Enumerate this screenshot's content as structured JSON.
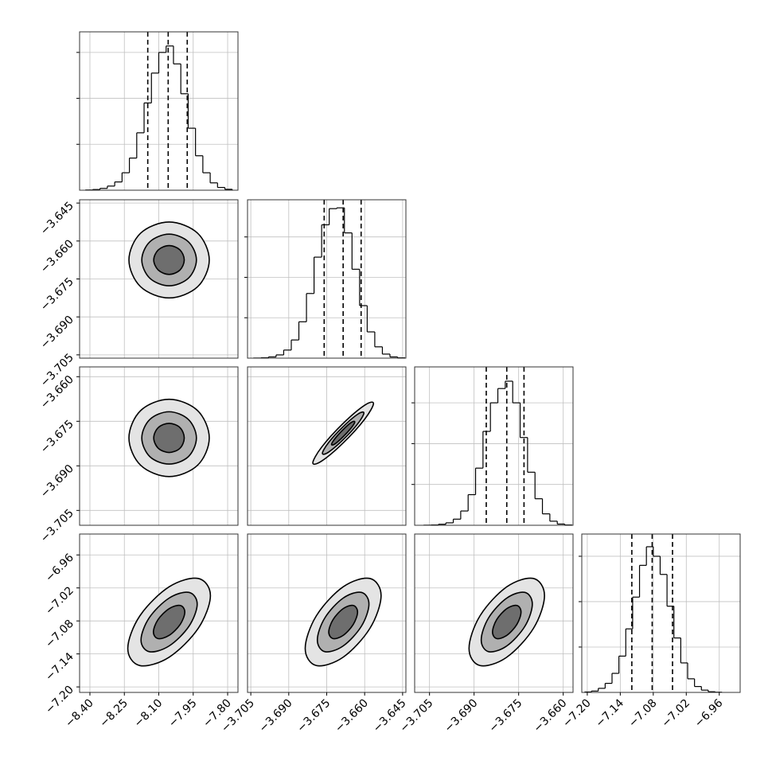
{
  "chart_data": {
    "type": "corner",
    "grid": true,
    "line_color": "#000000",
    "grid_color": "#c0c0c0",
    "contour_fills": [
      "#e4e4e4",
      "#b0b0b0",
      "#6e6e6e"
    ],
    "parameters": [
      {
        "lim": [
          -8.445,
          -7.755
        ],
        "ticks": [
          {
            "value": -8.4,
            "label": "−8.40"
          },
          {
            "value": -8.25,
            "label": "−8.25"
          },
          {
            "value": -8.1,
            "label": "−8.10"
          },
          {
            "value": -7.95,
            "label": "−7.95"
          },
          {
            "value": -7.8,
            "label": "−7.80"
          }
        ]
      },
      {
        "lim": [
          -3.7063,
          -3.6437
        ],
        "ticks": [
          {
            "value": -3.705,
            "label": "−3.705"
          },
          {
            "value": -3.69,
            "label": "−3.690"
          },
          {
            "value": -3.675,
            "label": "−3.675"
          },
          {
            "value": -3.66,
            "label": "−3.660"
          },
          {
            "value": -3.645,
            "label": "−3.645"
          }
        ]
      },
      {
        "lim": [
          -3.71,
          -3.6567
        ],
        "ticks": [
          {
            "value": -3.705,
            "label": "−3.705"
          },
          {
            "value": -3.69,
            "label": "−3.690"
          },
          {
            "value": -3.675,
            "label": "−3.675"
          },
          {
            "value": -3.66,
            "label": "−3.660"
          }
        ]
      },
      {
        "lim": [
          -7.21,
          -6.922
        ],
        "ticks": [
          {
            "value": -7.2,
            "label": "−7.20"
          },
          {
            "value": -7.14,
            "label": "−7.14"
          },
          {
            "value": -7.08,
            "label": "−7.08"
          },
          {
            "value": -7.02,
            "label": "−7.02"
          },
          {
            "value": -6.96,
            "label": "−6.96"
          }
        ]
      }
    ],
    "histograms": [
      {
        "bins": [
          -8.42,
          -8.388,
          -8.356,
          -8.324,
          -8.292,
          -8.26,
          -8.228,
          -8.196,
          -8.164,
          -8.132,
          -8.1,
          -8.068,
          -8.036,
          -8.004,
          -7.972,
          -7.94,
          -7.908,
          -7.876,
          -7.844,
          -7.812,
          -7.78
        ],
        "counts": [
          5,
          15,
          40,
          90,
          180,
          380,
          700,
          1250,
          1900,
          2550,
          3000,
          3140,
          2750,
          2100,
          1350,
          750,
          380,
          160,
          60,
          20
        ],
        "ylim": [
          0,
          3448
        ],
        "yticks": [
          1000,
          2000,
          3000
        ],
        "quantiles": [
          -8.148,
          -8.059,
          -7.976
        ]
      },
      {
        "bins": [
          -3.704,
          -3.701,
          -3.698,
          -3.695,
          -3.692,
          -3.689,
          -3.686,
          -3.683,
          -3.68,
          -3.677,
          -3.674,
          -3.671,
          -3.668,
          -3.665,
          -3.662,
          -3.659,
          -3.656,
          -3.653,
          -3.65,
          -3.647,
          -3.644
        ],
        "counts": [
          3,
          10,
          30,
          80,
          200,
          450,
          900,
          1600,
          2500,
          3300,
          3700,
          3720,
          3100,
          2200,
          1300,
          650,
          280,
          100,
          30,
          8
        ],
        "ylim": [
          0,
          3920
        ],
        "yticks": [
          1000,
          2000,
          3000
        ],
        "quantiles": [
          -3.676,
          -3.6685,
          -3.6614
        ]
      },
      {
        "bins": [
          -3.707,
          -3.7045,
          -3.702,
          -3.6995,
          -3.697,
          -3.6945,
          -3.692,
          -3.6895,
          -3.687,
          -3.6845,
          -3.682,
          -3.6795,
          -3.677,
          -3.6745,
          -3.672,
          -3.6695,
          -3.667,
          -3.6645,
          -3.662,
          -3.6595,
          -3.657
        ],
        "counts": [
          3,
          8,
          25,
          60,
          150,
          350,
          750,
          1400,
          2300,
          3000,
          3350,
          3530,
          3000,
          2150,
          1300,
          650,
          280,
          100,
          30,
          8
        ],
        "ylim": [
          0,
          3880
        ],
        "yticks": [
          1000,
          2000,
          3000
        ],
        "quantiles": [
          -3.6859,
          -3.679,
          -3.6732
        ]
      },
      {
        "bins": [
          -7.205,
          -7.1925,
          -7.18,
          -7.1675,
          -7.155,
          -7.1425,
          -7.13,
          -7.1175,
          -7.105,
          -7.0925,
          -7.08,
          -7.0675,
          -7.055,
          -7.0425,
          -7.03,
          -7.0175,
          -7.005,
          -6.9925,
          -6.98,
          -6.9675,
          -6.955
        ],
        "counts": [
          10,
          30,
          90,
          200,
          420,
          800,
          1400,
          2100,
          2800,
          3210,
          3000,
          2600,
          1900,
          1200,
          650,
          300,
          130,
          50,
          15,
          5
        ],
        "ylim": [
          0,
          3490
        ],
        "yticks": [
          1000,
          2000,
          3000
        ],
        "quantiles": [
          -7.119,
          -7.082,
          -7.045
        ]
      }
    ],
    "pairs": [
      {
        "contours": [
          {
            "x": [
              -7.88,
              -7.931,
              -8.055,
              -8.179,
              -8.23,
              -8.179,
              -8.055,
              -7.931
            ],
            "y": [
              -3.6675,
              -3.6569,
              -3.6525,
              -3.6569,
              -3.6675,
              -3.6781,
              -3.6825,
              -3.6781
            ]
          },
          {
            "x": [
              -7.936,
              -7.971,
              -8.055,
              -8.139,
              -8.174,
              -8.139,
              -8.055,
              -7.971
            ],
            "y": [
              -3.6675,
              -3.6603,
              -3.6573,
              -3.6603,
              -3.6675,
              -3.6747,
              -3.6777,
              -3.6747
            ]
          },
          {
            "x": [
              -7.989,
              -8.008,
              -8.055,
              -8.102,
              -8.122,
              -8.102,
              -8.055,
              -8.008
            ],
            "y": [
              -3.6675,
              -3.6635,
              -3.6618,
              -3.6635,
              -3.6675,
              -3.6715,
              -3.6732,
              -3.6715
            ]
          }
        ]
      },
      {
        "contours": [
          {
            "x": [
              -7.88,
              -7.931,
              -8.055,
              -8.179,
              -8.23,
              -8.179,
              -8.055,
              -7.931
            ],
            "y": [
              -3.6806,
              -3.6714,
              -3.6676,
              -3.6714,
              -3.6806,
              -3.6898,
              -3.6936,
              -3.6898
            ]
          },
          {
            "x": [
              -7.936,
              -7.971,
              -8.055,
              -8.139,
              -8.174,
              -8.139,
              -8.055,
              -7.971
            ],
            "y": [
              -3.6806,
              -3.6744,
              -3.6718,
              -3.6744,
              -3.6806,
              -3.6869,
              -3.6894,
              -3.6869
            ]
          },
          {
            "x": [
              -7.989,
              -8.008,
              -8.055,
              -8.102,
              -8.122,
              -8.102,
              -8.055,
              -8.008
            ],
            "y": [
              -3.6806,
              -3.6771,
              -3.6757,
              -3.6771,
              -3.6806,
              -3.6841,
              -3.6855,
              -3.6841
            ]
          }
        ]
      },
      {
        "contours": [
          {
            "x": [
              -3.6565,
              -3.66,
              -3.6685,
              -3.677,
              -3.6805,
              -3.677,
              -3.6685,
              -3.66
            ],
            "y": [
              -3.669,
              -3.6696,
              -3.6757,
              -3.6837,
              -3.689,
              -3.6884,
              -3.6823,
              -3.6743
            ]
          },
          {
            "x": [
              -3.6603,
              -3.6627,
              -3.6685,
              -3.6743,
              -3.6767,
              -3.6743,
              -3.6685,
              -3.6627
            ],
            "y": [
              -3.6722,
              -3.6726,
              -3.6768,
              -3.6822,
              -3.6858,
              -3.6854,
              -3.6812,
              -3.6758
            ]
          },
          {
            "x": [
              -3.6639,
              -3.6653,
              -3.6685,
              -3.6717,
              -3.6731,
              -3.6717,
              -3.6685,
              -3.6653
            ],
            "y": [
              -3.6752,
              -3.6754,
              -3.6778,
              -3.6808,
              -3.6828,
              -3.6826,
              -3.6802,
              -3.6772
            ]
          }
        ]
      },
      {
        "contours": [
          {
            "x": [
              -7.875,
              -7.9277,
              -8.055,
              -8.1823,
              -8.235,
              -8.1823,
              -8.055,
              -7.9277
            ],
            "y": [
              -7.034,
              -7.0028,
              -7.018,
              -7.0707,
              -7.13,
              -7.1612,
              -7.146,
              -7.0933
            ]
          },
          {
            "x": [
              -7.9326,
              -7.9685,
              -8.055,
              -8.1415,
              -8.1774,
              -8.1415,
              -8.055,
              -7.9685
            ],
            "y": [
              -7.0494,
              -7.0281,
              -7.0385,
              -7.0743,
              -7.1146,
              -7.1359,
              -7.1255,
              -7.0897
            ]
          },
          {
            "x": [
              -7.9866,
              -8.0066,
              -8.055,
              -8.1034,
              -8.1234,
              -8.1034,
              -8.055,
              -8.0066
            ],
            "y": [
              -7.0638,
              -7.0519,
              -7.0577,
              -7.0777,
              -7.1002,
              -7.1121,
              -7.1063,
              -7.0863
            ]
          }
        ]
      },
      {
        "contours": [
          {
            "x": [
              -3.6535,
              -3.6579,
              -3.6685,
              -3.6791,
              -3.6835,
              -3.6791,
              -3.6685,
              -3.6579
            ],
            "y": [
              -7.034,
              -7.0028,
              -7.018,
              -7.0707,
              -7.13,
              -7.1612,
              -7.146,
              -7.0933
            ]
          },
          {
            "x": [
              -3.6583,
              -3.6613,
              -3.6685,
              -3.6757,
              -3.6787,
              -3.6757,
              -3.6685,
              -3.6613
            ],
            "y": [
              -7.0494,
              -7.0281,
              -7.0385,
              -7.0743,
              -7.1146,
              -7.1359,
              -7.1255,
              -7.0897
            ]
          },
          {
            "x": [
              -3.6628,
              -3.6645,
              -3.6685,
              -3.6725,
              -3.6742,
              -3.6725,
              -3.6685,
              -3.6645
            ],
            "y": [
              -7.0638,
              -7.0519,
              -7.0577,
              -7.0777,
              -7.1002,
              -7.1121,
              -7.1063,
              -7.0863
            ]
          }
        ]
      },
      {
        "contours": [
          {
            "x": [
              -3.6663,
              -3.67,
              -3.679,
              -3.688,
              -3.6917,
              -3.688,
              -3.679,
              -3.67
            ],
            "y": [
              -7.034,
              -7.0028,
              -7.018,
              -7.0707,
              -7.13,
              -7.1612,
              -7.146,
              -7.0933
            ]
          },
          {
            "x": [
              -3.6704,
              -3.6729,
              -3.679,
              -3.6851,
              -3.6876,
              -3.6851,
              -3.679,
              -3.6729
            ],
            "y": [
              -7.0494,
              -7.0281,
              -7.0385,
              -7.0743,
              -7.1146,
              -7.1359,
              -7.1255,
              -7.0897
            ]
          },
          {
            "x": [
              -3.6742,
              -3.6756,
              -3.679,
              -3.6824,
              -3.6838,
              -3.6824,
              -3.679,
              -3.6756
            ],
            "y": [
              -7.0638,
              -7.0519,
              -7.0577,
              -7.0777,
              -7.1002,
              -7.1121,
              -7.1063,
              -7.0863
            ]
          }
        ]
      }
    ]
  }
}
